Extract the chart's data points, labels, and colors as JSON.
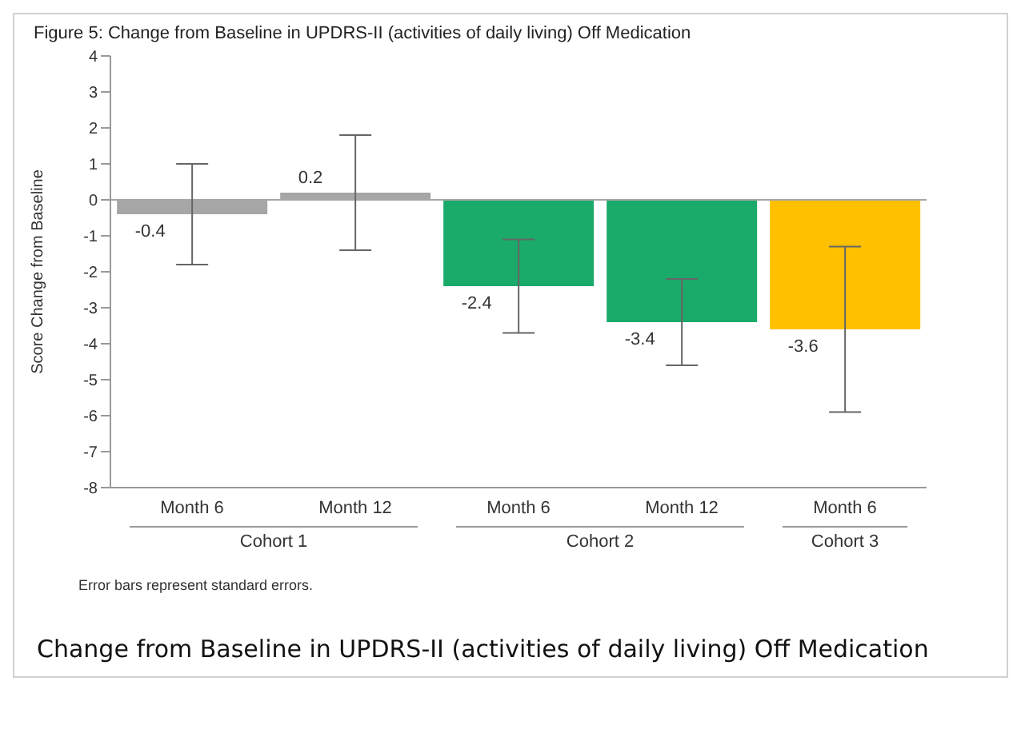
{
  "chart_data": {
    "type": "bar",
    "title": "Figure 5:  Change from Baseline in UPDRS-II (activities of daily living) Off Medication",
    "ylabel": "Score Change from Baseline",
    "categories": [
      "Month 6",
      "Month 12",
      "Month 6",
      "Month 12",
      "Month 6"
    ],
    "values": [
      -0.4,
      0.2,
      -2.4,
      -3.4,
      -3.6
    ],
    "colors": [
      "#a6a6a6",
      "#a6a6a6",
      "#1aaa6a",
      "#1aaa6a",
      "#ffc000"
    ],
    "errors": [
      [
        -1.8,
        1.0
      ],
      [
        -1.4,
        1.8
      ],
      [
        -3.7,
        -1.1
      ],
      [
        -4.6,
        -2.2
      ],
      [
        -5.9,
        -1.3
      ]
    ],
    "data_labels": true,
    "ylim": [
      -8,
      4
    ],
    "yticks": [
      -8,
      -7,
      -6,
      -5,
      -4,
      -3,
      -2,
      -1,
      0,
      1,
      2,
      3,
      4
    ],
    "ref_lines": [
      {
        "axis": "y",
        "value": 0,
        "color": "#a6a6a6"
      }
    ],
    "grid": false,
    "legend": false,
    "annotations": [
      "Cohort 1",
      "Cohort 2",
      "Cohort 3",
      "Error bars represent standard errors.",
      "Change from Baseline in UPDRS-II (activities of daily living) Off Medication"
    ]
  }
}
